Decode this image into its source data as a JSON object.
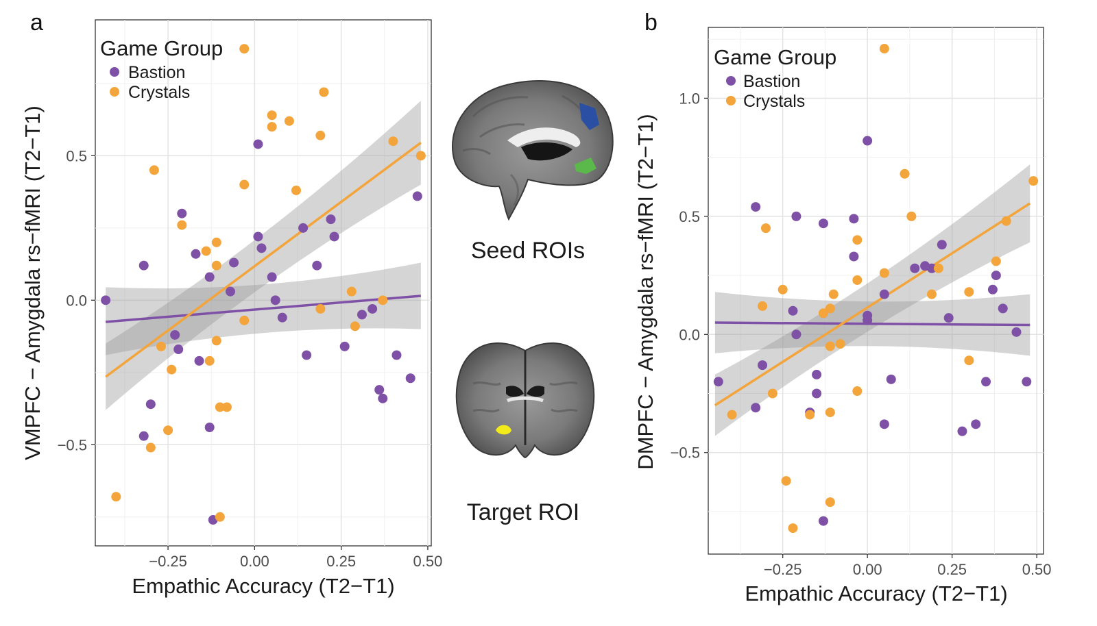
{
  "chart_data": [
    {
      "type": "scatter",
      "panel_label": "a",
      "xlabel": "Empathic Accuracy (T2−T1)",
      "ylabel": "VMPFC − Amygdala rs−fMRI (T2−T1)",
      "xlim": [
        -0.46,
        0.51
      ],
      "ylim": [
        -0.85,
        0.97
      ],
      "xticks": [
        -0.25,
        0.0,
        0.25,
        0.5
      ],
      "xtick_labels": [
        "−0.25",
        "0.00",
        "0.25",
        "0.50"
      ],
      "yticks": [
        -0.5,
        0.0,
        0.5
      ],
      "ytick_labels": [
        "−0.5",
        "0.0",
        "0.5"
      ],
      "grid": true,
      "legend": {
        "title": "Game Group",
        "position": "top-left",
        "entries": [
          "Bastion",
          "Crystals"
        ]
      },
      "series": [
        {
          "name": "Bastion",
          "color": "#7e51a6",
          "points": [
            [
              -0.43,
              0.0
            ],
            [
              -0.32,
              0.12
            ],
            [
              -0.32,
              -0.47
            ],
            [
              -0.3,
              -0.36
            ],
            [
              -0.23,
              -0.12
            ],
            [
              -0.22,
              -0.17
            ],
            [
              -0.21,
              0.3
            ],
            [
              -0.17,
              0.16
            ],
            [
              -0.16,
              -0.21
            ],
            [
              -0.13,
              -0.44
            ],
            [
              -0.13,
              0.08
            ],
            [
              -0.12,
              -0.76
            ],
            [
              -0.07,
              0.03
            ],
            [
              -0.06,
              0.13
            ],
            [
              0.01,
              0.22
            ],
            [
              0.01,
              0.54
            ],
            [
              0.02,
              0.18
            ],
            [
              0.05,
              0.08
            ],
            [
              0.06,
              0.0
            ],
            [
              0.08,
              -0.06
            ],
            [
              0.14,
              0.25
            ],
            [
              0.15,
              -0.19
            ],
            [
              0.18,
              0.12
            ],
            [
              0.22,
              0.28
            ],
            [
              0.23,
              0.22
            ],
            [
              0.26,
              -0.16
            ],
            [
              0.31,
              -0.05
            ],
            [
              0.34,
              -0.03
            ],
            [
              0.36,
              -0.31
            ],
            [
              0.37,
              -0.34
            ],
            [
              0.41,
              -0.19
            ],
            [
              0.45,
              -0.27
            ],
            [
              0.47,
              0.36
            ]
          ],
          "fit": {
            "x": [
              -0.43,
              0.48
            ],
            "y": [
              -0.075,
              0.015
            ],
            "ci_lower_ends": [
              -0.19,
              -0.1
            ],
            "ci_upper_ends": [
              0.045,
              0.13
            ]
          }
        },
        {
          "name": "Crystals",
          "color": "#f3a43a",
          "points": [
            [
              -0.4,
              -0.68
            ],
            [
              -0.3,
              -0.51
            ],
            [
              -0.29,
              0.45
            ],
            [
              -0.27,
              -0.16
            ],
            [
              -0.25,
              -0.45
            ],
            [
              -0.24,
              -0.24
            ],
            [
              -0.21,
              0.26
            ],
            [
              -0.14,
              0.17
            ],
            [
              -0.13,
              -0.21
            ],
            [
              -0.11,
              -0.14
            ],
            [
              -0.11,
              0.12
            ],
            [
              -0.11,
              0.2
            ],
            [
              -0.1,
              -0.37
            ],
            [
              -0.1,
              -0.75
            ],
            [
              -0.08,
              -0.37
            ],
            [
              -0.03,
              -0.07
            ],
            [
              -0.03,
              0.4
            ],
            [
              -0.03,
              0.87
            ],
            [
              0.05,
              0.6
            ],
            [
              0.05,
              0.64
            ],
            [
              0.1,
              0.62
            ],
            [
              0.12,
              0.38
            ],
            [
              0.19,
              -0.03
            ],
            [
              0.19,
              0.57
            ],
            [
              0.2,
              0.72
            ],
            [
              0.28,
              0.03
            ],
            [
              0.29,
              -0.09
            ],
            [
              0.37,
              0.0
            ],
            [
              0.4,
              0.55
            ],
            [
              0.48,
              0.5
            ]
          ],
          "fit": {
            "x": [
              -0.43,
              0.48
            ],
            "y": [
              -0.265,
              0.545
            ],
            "ci_lower_ends": [
              -0.38,
              0.4
            ],
            "ci_upper_ends": [
              -0.15,
              0.69
            ]
          }
        }
      ]
    },
    {
      "type": "scatter",
      "panel_label": "b",
      "xlabel": "Empathic Accuracy (T2−T1)",
      "ylabel": "DMPFC − Amygdala rs−fMRI (T2−T1)",
      "xlim": [
        -0.47,
        0.52
      ],
      "ylim": [
        -0.93,
        1.3
      ],
      "xticks": [
        -0.25,
        0.0,
        0.25,
        0.5
      ],
      "xtick_labels": [
        "−0.25",
        "0.00",
        "0.25",
        "0.50"
      ],
      "yticks": [
        -0.5,
        0.0,
        0.5,
        1.0
      ],
      "ytick_labels": [
        "−0.5",
        "0.0",
        "0.5",
        "1.0"
      ],
      "grid": true,
      "legend": {
        "title": "Game Group",
        "position": "top-left",
        "entries": [
          "Bastion",
          "Crystals"
        ]
      },
      "series": [
        {
          "name": "Bastion",
          "color": "#7e51a6",
          "points": [
            [
              -0.44,
              -0.2
            ],
            [
              -0.33,
              -0.31
            ],
            [
              -0.33,
              0.54
            ],
            [
              -0.31,
              -0.13
            ],
            [
              -0.22,
              0.1
            ],
            [
              -0.21,
              0.0
            ],
            [
              -0.21,
              0.5
            ],
            [
              -0.17,
              -0.33
            ],
            [
              -0.15,
              -0.17
            ],
            [
              -0.15,
              -0.25
            ],
            [
              -0.13,
              0.47
            ],
            [
              -0.13,
              -0.79
            ],
            [
              -0.04,
              0.49
            ],
            [
              -0.04,
              0.33
            ],
            [
              0.0,
              0.82
            ],
            [
              0.0,
              0.08
            ],
            [
              0.0,
              0.06
            ],
            [
              0.05,
              0.17
            ],
            [
              0.05,
              -0.38
            ],
            [
              0.07,
              -0.19
            ],
            [
              0.14,
              0.28
            ],
            [
              0.17,
              0.29
            ],
            [
              0.19,
              0.28
            ],
            [
              0.22,
              0.38
            ],
            [
              0.24,
              0.07
            ],
            [
              0.28,
              -0.41
            ],
            [
              0.32,
              -0.38
            ],
            [
              0.35,
              -0.2
            ],
            [
              0.37,
              0.19
            ],
            [
              0.38,
              0.25
            ],
            [
              0.4,
              0.11
            ],
            [
              0.44,
              0.01
            ],
            [
              0.47,
              -0.2
            ]
          ],
          "fit": {
            "x": [
              -0.45,
              0.48
            ],
            "y": [
              0.05,
              0.04
            ],
            "ci_lower_ends": [
              -0.08,
              -0.09
            ],
            "ci_upper_ends": [
              0.18,
              0.17
            ]
          }
        },
        {
          "name": "Crystals",
          "color": "#f3a43a",
          "points": [
            [
              -0.4,
              -0.34
            ],
            [
              -0.31,
              0.12
            ],
            [
              -0.3,
              0.45
            ],
            [
              -0.28,
              -0.25
            ],
            [
              -0.25,
              0.19
            ],
            [
              -0.24,
              -0.62
            ],
            [
              -0.22,
              -0.82
            ],
            [
              -0.17,
              -0.34
            ],
            [
              -0.13,
              0.09
            ],
            [
              -0.11,
              0.11
            ],
            [
              -0.11,
              -0.05
            ],
            [
              -0.11,
              -0.33
            ],
            [
              -0.11,
              -0.71
            ],
            [
              -0.1,
              0.17
            ],
            [
              -0.08,
              -0.04
            ],
            [
              -0.03,
              0.4
            ],
            [
              -0.03,
              0.23
            ],
            [
              -0.03,
              -0.24
            ],
            [
              0.05,
              0.26
            ],
            [
              0.05,
              1.21
            ],
            [
              0.11,
              0.68
            ],
            [
              0.13,
              0.5
            ],
            [
              0.19,
              0.17
            ],
            [
              0.21,
              0.28
            ],
            [
              0.3,
              0.18
            ],
            [
              0.3,
              -0.11
            ],
            [
              0.38,
              0.31
            ],
            [
              0.41,
              0.48
            ],
            [
              0.49,
              0.65
            ]
          ],
          "fit": {
            "x": [
              -0.45,
              0.48
            ],
            "y": [
              -0.3,
              0.555
            ],
            "ci_lower_ends": [
              -0.43,
              0.39
            ],
            "ci_upper_ends": [
              -0.17,
              0.72
            ]
          }
        }
      ]
    }
  ],
  "brain_images": {
    "seed_label": "Seed ROIs",
    "target_label": "Target ROI",
    "seed_colors": [
      "#2b4fa3",
      "#5bb84a"
    ],
    "target_color": "#f2ea1a"
  }
}
